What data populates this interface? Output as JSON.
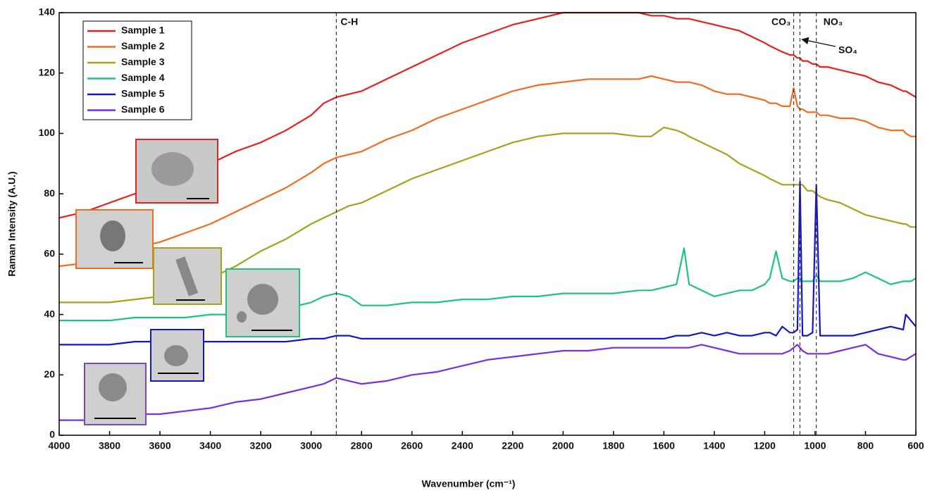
{
  "chart_data": {
    "type": "line",
    "xlabel": "Wavenumber (cm⁻¹)",
    "ylabel": "Raman Intensity (A.U.)",
    "x": [
      4000,
      3900,
      3800,
      3700,
      3600,
      3500,
      3400,
      3300,
      3200,
      3100,
      3000,
      2950,
      2900,
      2850,
      2800,
      2700,
      2600,
      2500,
      2400,
      2300,
      2200,
      2100,
      2000,
      1900,
      1800,
      1700,
      1650,
      1600,
      1550,
      1520,
      1500,
      1450,
      1400,
      1350,
      1300,
      1250,
      1200,
      1180,
      1155,
      1130,
      1100,
      1085,
      1070,
      1060,
      1050,
      1030,
      1010,
      995,
      980,
      950,
      900,
      850,
      800,
      750,
      700,
      650,
      640,
      620,
      600
    ],
    "series": [
      {
        "name": "Sample 1",
        "color": "#e6201e",
        "values": [
          72,
          74,
          77,
          80,
          83,
          87,
          90,
          94,
          97,
          101,
          106,
          110,
          112,
          113,
          114,
          118,
          122,
          126,
          130,
          133,
          136,
          138,
          140,
          140,
          140,
          140,
          139,
          139,
          138,
          138,
          138,
          137,
          136,
          135,
          134,
          132,
          130,
          129,
          128,
          127,
          126,
          126,
          125,
          125,
          124,
          124,
          123,
          123,
          122,
          122,
          121,
          120,
          119,
          117,
          116,
          114,
          114,
          113,
          112
        ]
      },
      {
        "name": "Sample 2",
        "color": "#f26b21",
        "values": [
          56,
          57,
          59,
          62,
          64,
          67,
          70,
          74,
          78,
          82,
          87,
          90,
          92,
          93,
          94,
          98,
          101,
          105,
          108,
          111,
          114,
          116,
          117,
          118,
          118,
          118,
          119,
          118,
          117,
          117,
          117,
          116,
          114,
          113,
          113,
          112,
          111,
          110,
          110,
          109,
          109,
          115,
          109,
          108,
          108,
          107,
          107,
          107,
          106,
          106,
          105,
          105,
          104,
          102,
          101,
          101,
          100,
          99,
          99
        ]
      },
      {
        "name": "Sample 3",
        "color": "#a6a21b",
        "values": [
          44,
          44,
          44,
          45,
          46,
          49,
          52,
          56,
          61,
          65,
          70,
          72,
          74,
          76,
          77,
          81,
          85,
          88,
          91,
          94,
          97,
          99,
          100,
          100,
          100,
          99,
          99,
          102,
          101,
          100,
          99,
          97,
          95,
          93,
          90,
          88,
          86,
          85,
          84,
          83,
          83,
          83,
          83,
          83,
          83,
          81,
          81,
          80,
          79,
          78,
          77,
          75,
          73,
          72,
          71,
          70,
          70,
          69,
          69
        ]
      },
      {
        "name": "Sample 4",
        "color": "#1ec47a",
        "values": [
          38,
          38,
          38,
          39,
          39,
          39,
          40,
          40,
          41,
          42,
          44,
          46,
          47,
          46,
          43,
          43,
          44,
          44,
          45,
          45,
          46,
          46,
          47,
          47,
          47,
          48,
          48,
          49,
          50,
          62,
          50,
          48,
          46,
          47,
          48,
          48,
          50,
          52,
          61,
          52,
          51,
          51,
          52,
          52,
          51,
          51,
          51,
          53,
          51,
          51,
          51,
          52,
          54,
          52,
          50,
          51,
          51,
          51,
          52
        ]
      },
      {
        "name": "Sample 5",
        "color": "#1414c8",
        "values": [
          30,
          30,
          30,
          31,
          31,
          31,
          31,
          31,
          31,
          31,
          32,
          32,
          33,
          33,
          32,
          32,
          32,
          32,
          32,
          32,
          32,
          32,
          32,
          32,
          32,
          32,
          32,
          32,
          33,
          33,
          33,
          34,
          33,
          34,
          33,
          33,
          34,
          34,
          33,
          36,
          34,
          34,
          35,
          84,
          33,
          33,
          34,
          83,
          33,
          33,
          33,
          33,
          34,
          35,
          36,
          35,
          40,
          38,
          36
        ]
      },
      {
        "name": "Sample 6",
        "color": "#7a2ee0",
        "values": [
          5,
          5,
          6,
          7,
          7,
          8,
          9,
          11,
          12,
          14,
          16,
          17,
          19,
          18,
          17,
          18,
          20,
          21,
          23,
          25,
          26,
          27,
          28,
          28,
          29,
          29,
          29,
          29,
          29,
          29,
          29,
          30,
          29,
          28,
          27,
          27,
          27,
          27,
          27,
          27,
          28,
          29,
          30,
          29,
          28,
          27,
          27,
          27,
          27,
          27,
          28,
          29,
          30,
          27,
          26,
          25,
          25,
          26,
          27
        ]
      }
    ],
    "xlim": [
      4000,
      600
    ],
    "ylim": [
      0,
      140
    ],
    "xticks": [
      4000,
      3800,
      3600,
      3400,
      3200,
      3000,
      2800,
      2600,
      2400,
      2200,
      2000,
      1800,
      1600,
      1400,
      1200,
      1000,
      800,
      600
    ],
    "yticks": [
      0,
      20,
      40,
      60,
      80,
      100,
      120,
      140
    ],
    "annotations": [
      {
        "text": "C-H",
        "x": 2900
      },
      {
        "text": "CO₃",
        "x": 1085
      },
      {
        "text": "SO₄",
        "x": 1060
      },
      {
        "text": "NO₃",
        "x": 995
      }
    ],
    "legend": "upper-left"
  }
}
